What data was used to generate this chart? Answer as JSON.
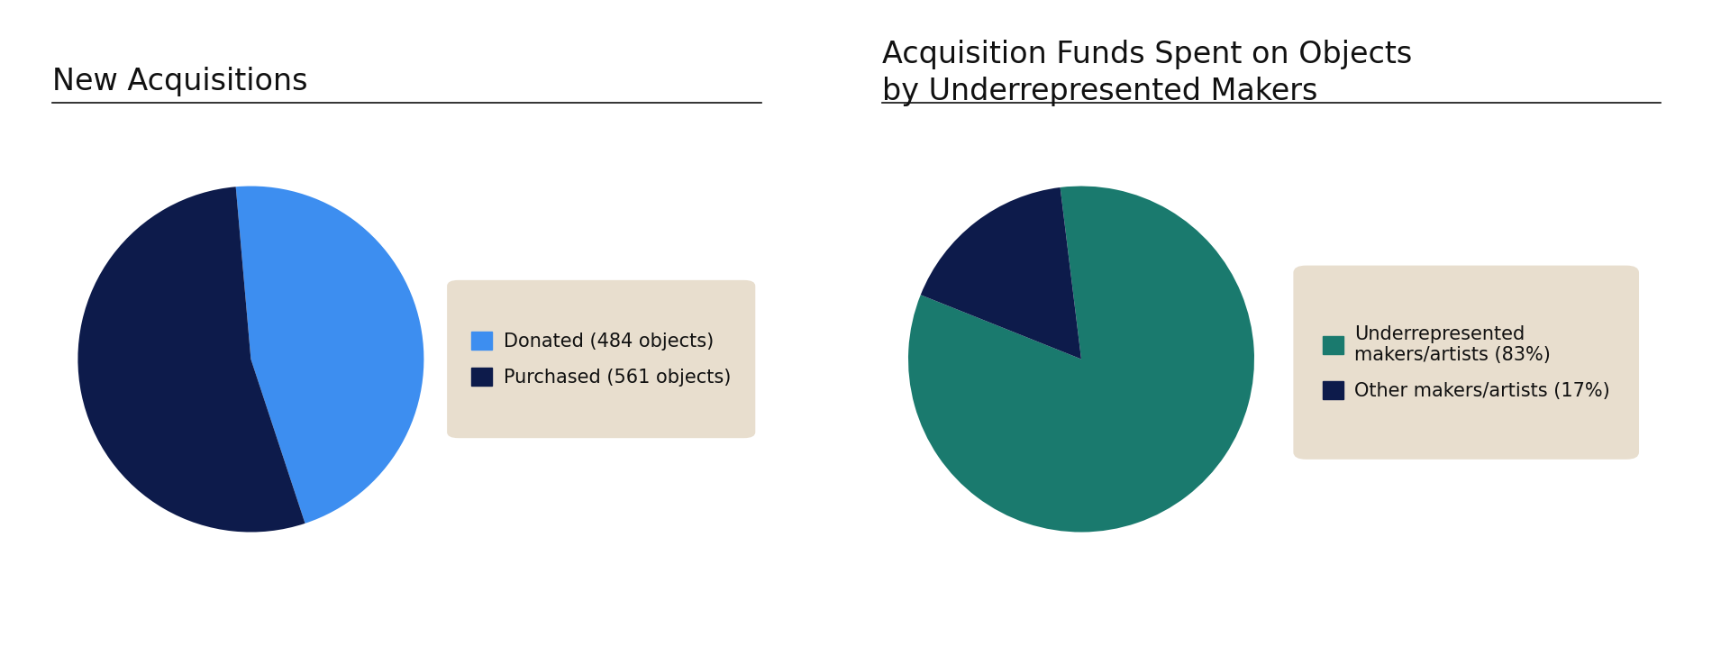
{
  "fig_width": 19.2,
  "fig_height": 7.38,
  "bg_color": "#ffffff",
  "left_chart": {
    "title": "New Acquisitions",
    "values": [
      484,
      561
    ],
    "colors": [
      "#3d8ef0",
      "#0d1b4b"
    ],
    "labels": [
      "Donated (484 objects)",
      "Purchased (561 objects)"
    ],
    "startangle": 95
  },
  "right_chart": {
    "title": "Acquisition Funds Spent on Objects\nby Underrepresented Makers",
    "values": [
      83,
      17
    ],
    "colors": [
      "#1a7a6e",
      "#0d1b4b"
    ],
    "labels": [
      "Underrepresented\nmakers/artists (83%)",
      "Other makers/artists (17%)"
    ],
    "startangle": 97
  },
  "legend_bg_color": "#e8dece",
  "title_fontsize": 24,
  "legend_fontsize": 15,
  "title_color": "#111111",
  "legend_text_color": "#111111",
  "line_color": "#111111"
}
